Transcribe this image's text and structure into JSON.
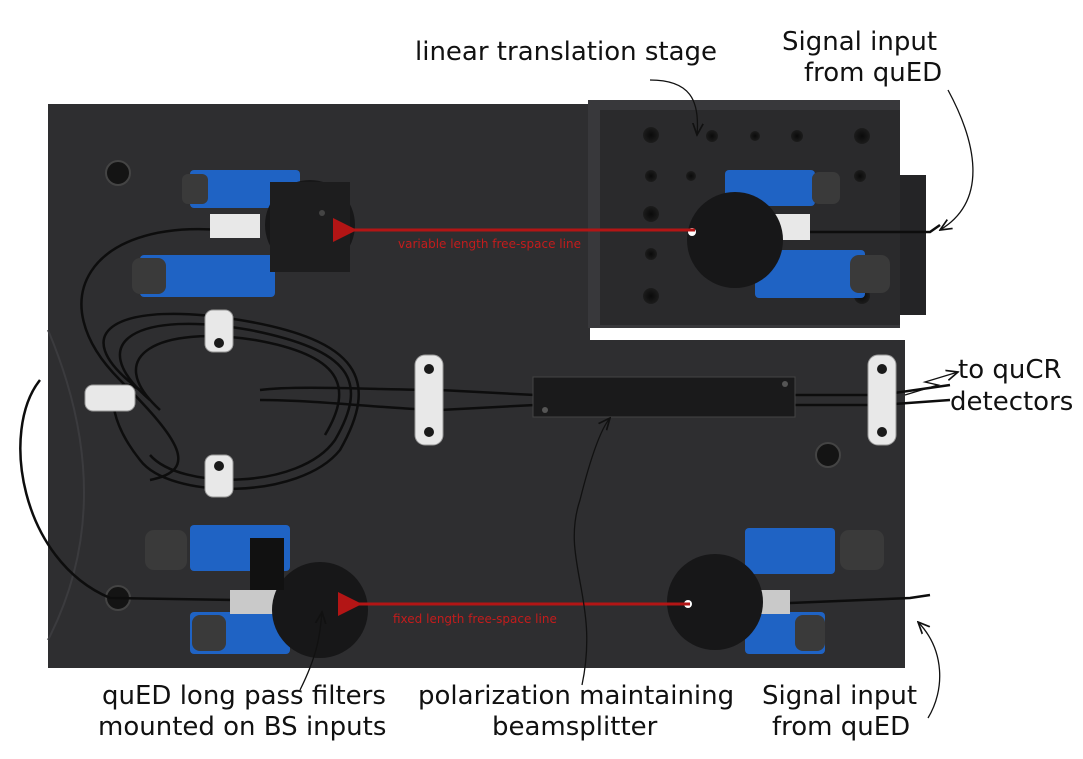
{
  "labels": {
    "linear_stage": "linear translation stage",
    "signal_top_line1": "Signal input",
    "signal_top_line2": "from quED",
    "detectors_line1": "to quCR",
    "detectors_line2": "detectors",
    "filters_line1": "quED long pass filters",
    "filters_line2": "mounted on BS inputs",
    "bs_line1": "polarization maintaining",
    "bs_line2": "beamsplitter",
    "signal_bottom_line1": "Signal input",
    "signal_bottom_line2": "from quED"
  },
  "beam_labels": {
    "variable": "variable length free-space line",
    "fixed": "fixed length free-space line"
  },
  "colors": {
    "board": "#2e2e30",
    "stage": "#2a2a2c",
    "mount_blue": "#1f63c4",
    "beam_red": "#b31515",
    "fiber": "#0d0d0d",
    "clip_white": "#e8e8e8",
    "knob": "#3a3a3a",
    "text": "#111111"
  }
}
